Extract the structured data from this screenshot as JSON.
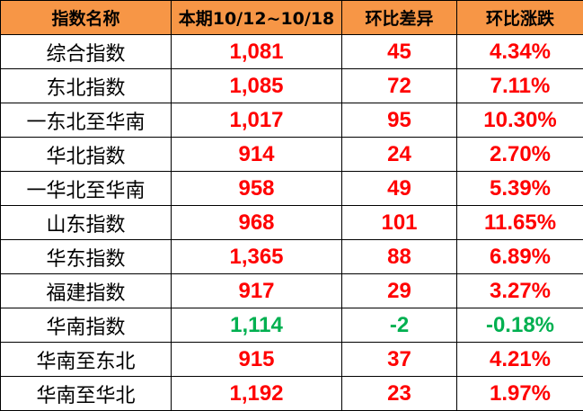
{
  "headers": [
    "指数名称",
    "本期10/12~10/18",
    "环比差异",
    "环比涨跌"
  ],
  "colors": {
    "header_bg": "#F79646",
    "up": "#FF0000",
    "down": "#00B050"
  },
  "rows": [
    {
      "name": "综合指数",
      "value": "1,081",
      "diff": "45",
      "pct": "4.34%",
      "trend": "up"
    },
    {
      "name": "东北指数",
      "value": "1,085",
      "diff": "72",
      "pct": "7.11%",
      "trend": "up"
    },
    {
      "name": "一东北至华南",
      "value": "1,017",
      "diff": "95",
      "pct": "10.30%",
      "trend": "up"
    },
    {
      "name": "华北指数",
      "value": "914",
      "diff": "24",
      "pct": "2.70%",
      "trend": "up"
    },
    {
      "name": "一华北至华南",
      "value": "958",
      "diff": "49",
      "pct": "5.39%",
      "trend": "up"
    },
    {
      "name": "山东指数",
      "value": "968",
      "diff": "101",
      "pct": "11.65%",
      "trend": "up"
    },
    {
      "name": "华东指数",
      "value": "1,365",
      "diff": "88",
      "pct": "6.89%",
      "trend": "up"
    },
    {
      "name": "福建指数",
      "value": "917",
      "diff": "29",
      "pct": "3.27%",
      "trend": "up"
    },
    {
      "name": "华南指数",
      "value": "1,114",
      "diff": "-2",
      "pct": "-0.18%",
      "trend": "down"
    },
    {
      "name": "华南至东北",
      "value": "915",
      "diff": "37",
      "pct": "4.21%",
      "trend": "up"
    },
    {
      "name": "华南至华北",
      "value": "1,192",
      "diff": "23",
      "pct": "1.97%",
      "trend": "up"
    }
  ]
}
